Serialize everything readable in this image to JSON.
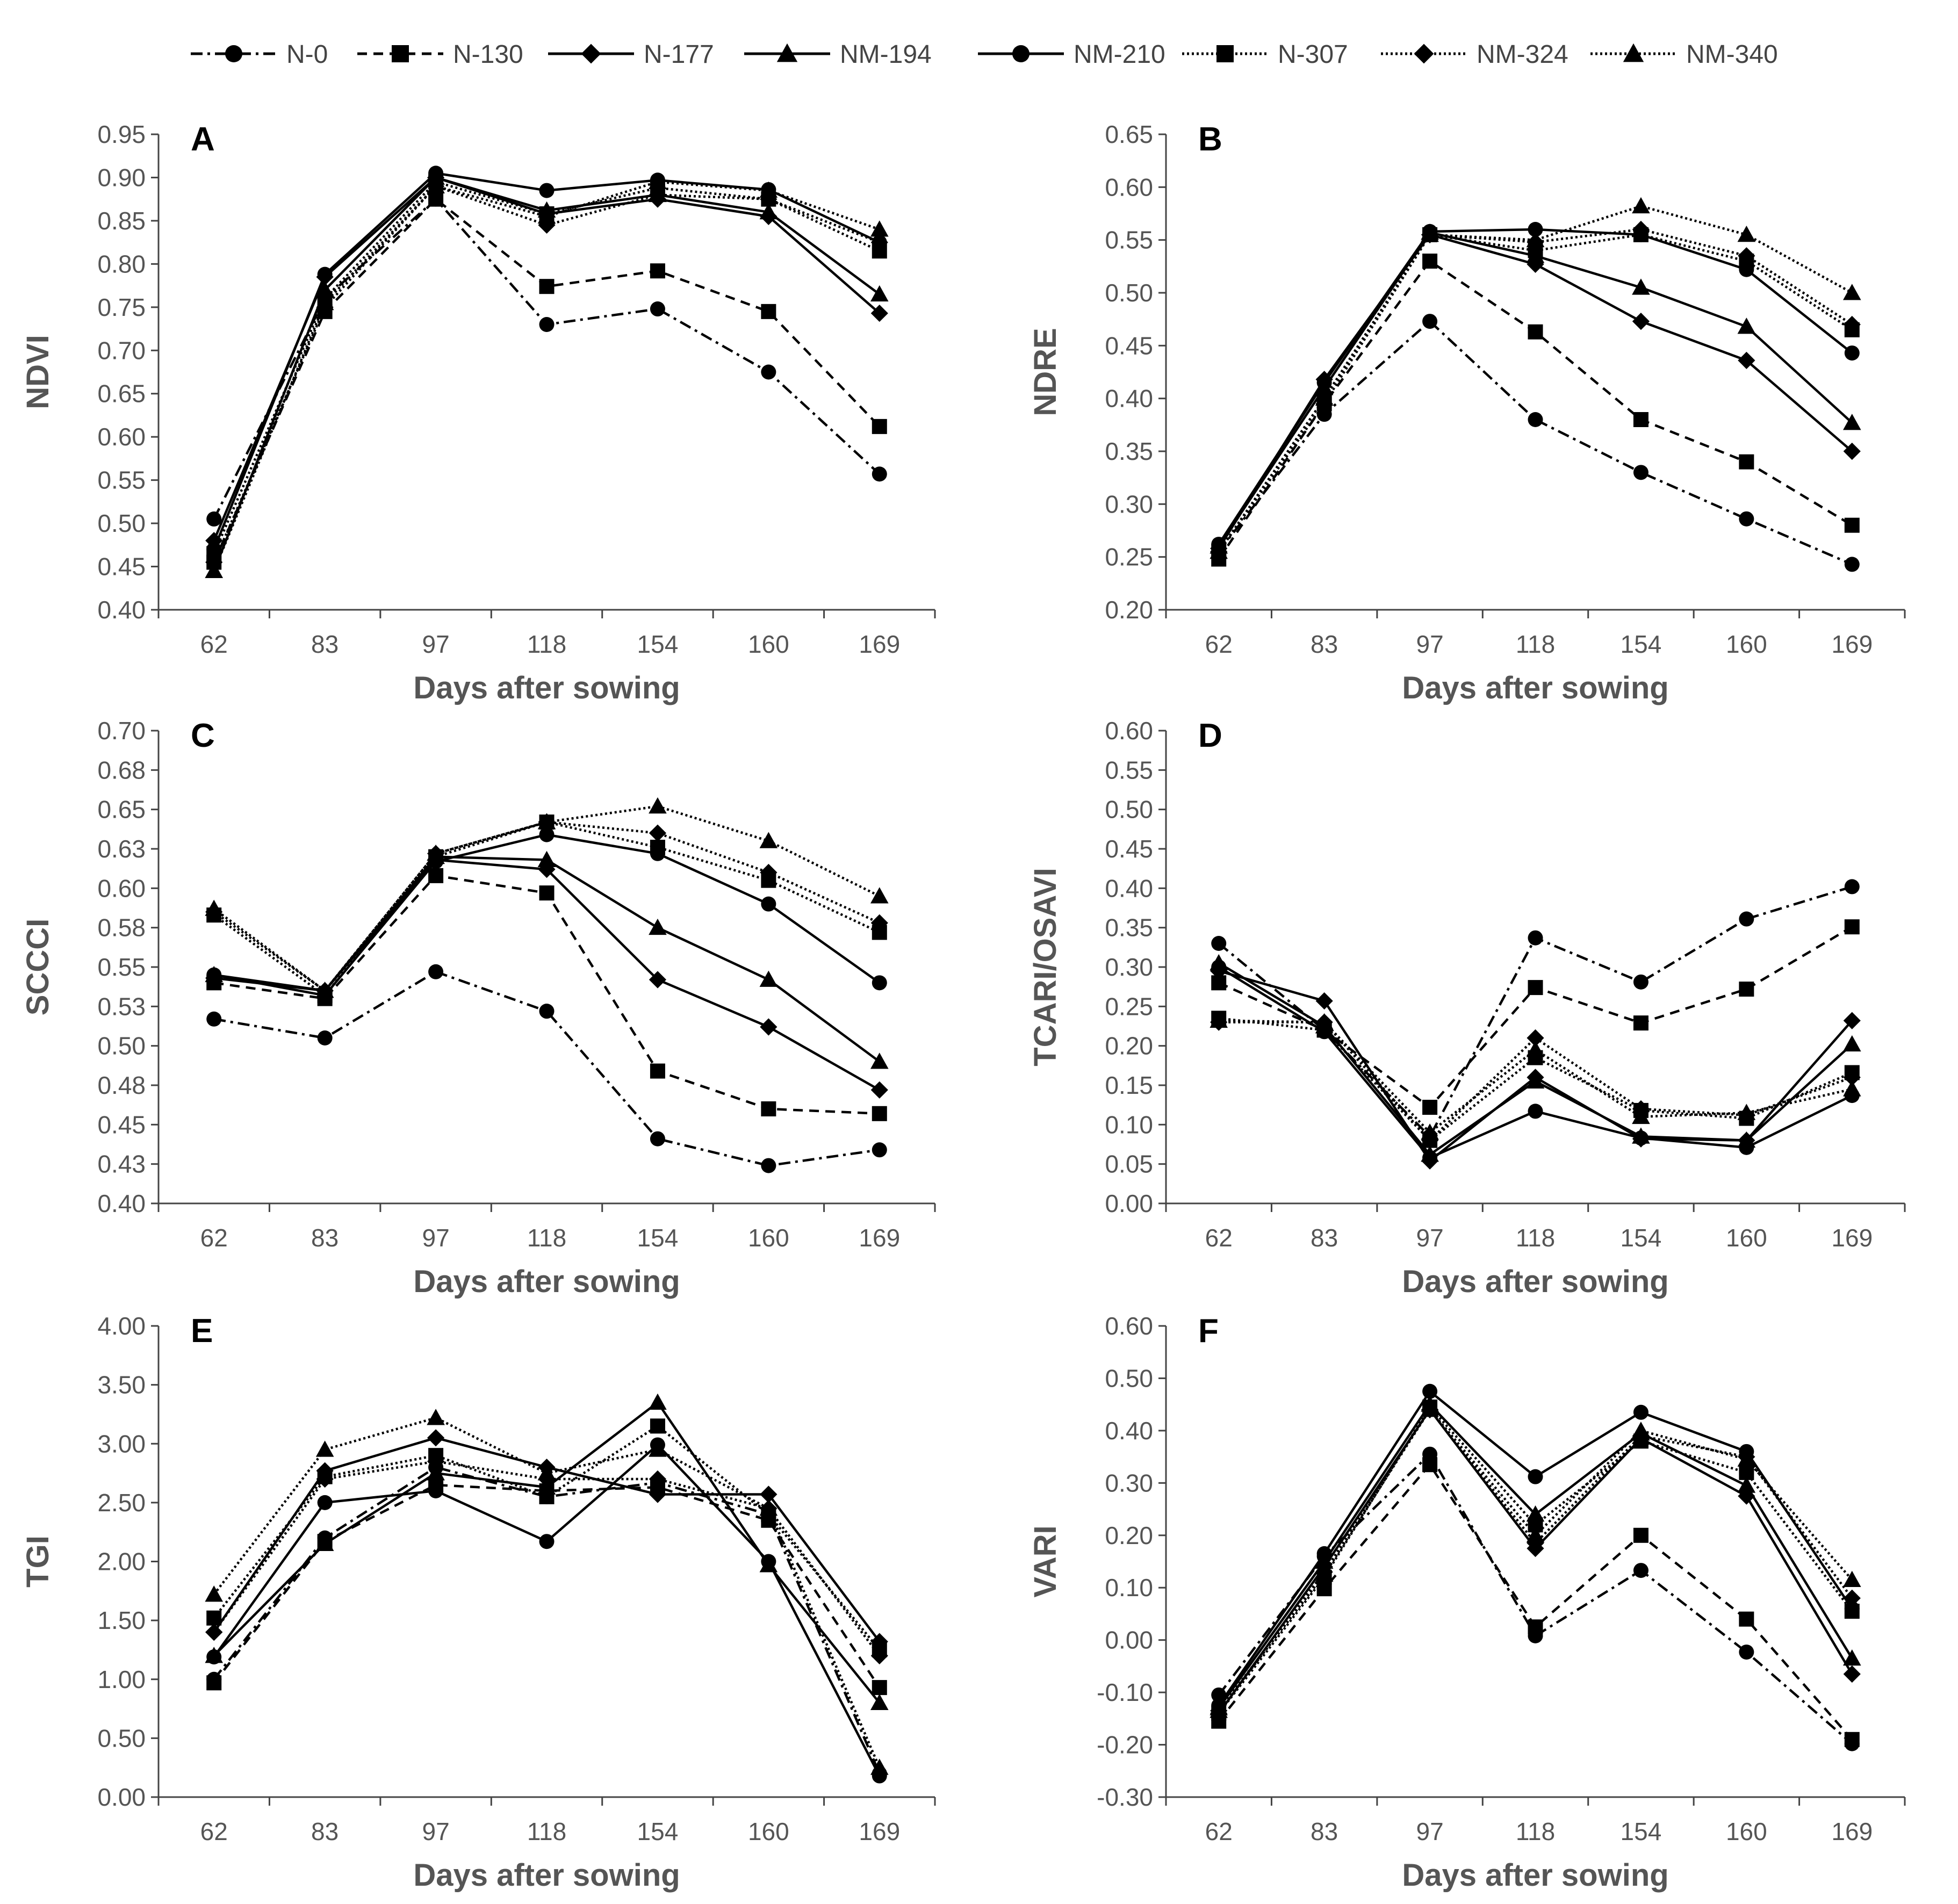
{
  "legend": {
    "position": "top",
    "entries": [
      {
        "name": "N-0",
        "dash": "dashdot",
        "marker": "circle"
      },
      {
        "name": "N-130",
        "dash": "dashed",
        "marker": "square"
      },
      {
        "name": "N-177",
        "dash": "solid",
        "marker": "diamond"
      },
      {
        "name": "NM-194",
        "dash": "solid",
        "marker": "triangle"
      },
      {
        "name": "NM-210",
        "dash": "solid",
        "marker": "circle"
      },
      {
        "name": "N-307",
        "dash": "dotted",
        "marker": "square"
      },
      {
        "name": "NM-324",
        "dash": "dotted",
        "marker": "diamond"
      },
      {
        "name": "NM-340",
        "dash": "dotted",
        "marker": "triangle"
      }
    ]
  },
  "chart_data": [
    {
      "panel": "A",
      "type": "line",
      "xlabel": "Days after sowing",
      "ylabel": "NDVI",
      "categories": [
        "62",
        "83",
        "97",
        "118",
        "154",
        "160",
        "169"
      ],
      "ylim": [
        0.4,
        0.95
      ],
      "ystep": 0.05,
      "decimals": 2,
      "yticks": [
        "0.40",
        "0.45",
        "0.50",
        "0.55",
        "0.60",
        "0.65",
        "0.70",
        "0.75",
        "0.80",
        "0.85",
        "0.90",
        "0.95"
      ],
      "series": [
        {
          "name": "N-0",
          "values": [
            0.505,
            0.76,
            0.875,
            0.73,
            0.748,
            0.675,
            0.557
          ]
        },
        {
          "name": "N-130",
          "values": [
            0.455,
            0.745,
            0.875,
            0.774,
            0.792,
            0.745,
            0.612
          ]
        },
        {
          "name": "N-177",
          "values": [
            0.48,
            0.785,
            0.9,
            0.858,
            0.875,
            0.855,
            0.743
          ]
        },
        {
          "name": "NM-194",
          "values": [
            0.445,
            0.77,
            0.9,
            0.862,
            0.88,
            0.86,
            0.765
          ]
        },
        {
          "name": "NM-210",
          "values": [
            0.47,
            0.788,
            0.905,
            0.885,
            0.897,
            0.886,
            0.825
          ]
        },
        {
          "name": "N-307",
          "values": [
            0.465,
            0.76,
            0.895,
            0.858,
            0.888,
            0.875,
            0.815
          ]
        },
        {
          "name": "NM-324",
          "values": [
            0.455,
            0.75,
            0.89,
            0.845,
            0.88,
            0.875,
            0.825
          ]
        },
        {
          "name": "NM-340",
          "values": [
            0.445,
            0.755,
            0.89,
            0.855,
            0.895,
            0.885,
            0.84
          ]
        }
      ]
    },
    {
      "panel": "B",
      "type": "line",
      "xlabel": "Days after sowing",
      "ylabel": "NDRE",
      "categories": [
        "62",
        "83",
        "97",
        "118",
        "154",
        "160",
        "169"
      ],
      "ylim": [
        0.2,
        0.65
      ],
      "ystep": 0.05,
      "decimals": 2,
      "yticks": [
        "0.20",
        "0.25",
        "0.30",
        "0.35",
        "0.40",
        "0.45",
        "0.50",
        "0.55",
        "0.60",
        "0.65"
      ],
      "series": [
        {
          "name": "N-0",
          "values": [
            0.255,
            0.385,
            0.473,
            0.38,
            0.33,
            0.286,
            0.243
          ]
        },
        {
          "name": "N-130",
          "values": [
            0.248,
            0.395,
            0.53,
            0.463,
            0.38,
            0.34,
            0.28
          ]
        },
        {
          "name": "N-177",
          "values": [
            0.258,
            0.418,
            0.555,
            0.527,
            0.473,
            0.436,
            0.35
          ]
        },
        {
          "name": "NM-194",
          "values": [
            0.26,
            0.41,
            0.557,
            0.535,
            0.505,
            0.468,
            0.377
          ]
        },
        {
          "name": "NM-210",
          "values": [
            0.262,
            0.415,
            0.558,
            0.56,
            0.555,
            0.522,
            0.443
          ]
        },
        {
          "name": "N-307",
          "values": [
            0.255,
            0.4,
            0.555,
            0.54,
            0.555,
            0.53,
            0.465
          ]
        },
        {
          "name": "NM-324",
          "values": [
            0.255,
            0.395,
            0.555,
            0.548,
            0.56,
            0.535,
            0.47
          ]
        },
        {
          "name": "NM-340",
          "values": [
            0.255,
            0.4,
            0.555,
            0.55,
            0.582,
            0.555,
            0.5
          ]
        }
      ]
    },
    {
      "panel": "C",
      "type": "line",
      "xlabel": "Days after sowing",
      "ylabel": "SCCCI",
      "categories": [
        "62",
        "83",
        "97",
        "118",
        "154",
        "160",
        "169"
      ],
      "ylim": [
        0.4,
        0.7
      ],
      "ystep": 0.025,
      "decimals": 2,
      "yticks": [
        "0.40",
        "0.43",
        "0.45",
        "0.48",
        "0.50",
        "0.53",
        "0.55",
        "0.58",
        "0.60",
        "0.63",
        "0.65",
        "0.68",
        "0.70"
      ],
      "series": [
        {
          "name": "N-0",
          "values": [
            0.517,
            0.505,
            0.547,
            0.522,
            0.441,
            0.424,
            0.434
          ]
        },
        {
          "name": "N-130",
          "values": [
            0.54,
            0.53,
            0.608,
            0.597,
            0.484,
            0.46,
            0.457
          ]
        },
        {
          "name": "N-177",
          "values": [
            0.543,
            0.535,
            0.618,
            0.612,
            0.542,
            0.512,
            0.472
          ]
        },
        {
          "name": "NM-194",
          "values": [
            0.545,
            0.535,
            0.62,
            0.618,
            0.575,
            0.542,
            0.49
          ]
        },
        {
          "name": "NM-210",
          "values": [
            0.545,
            0.532,
            0.617,
            0.634,
            0.622,
            0.59,
            0.54
          ]
        },
        {
          "name": "N-307",
          "values": [
            0.583,
            0.532,
            0.62,
            0.642,
            0.626,
            0.605,
            0.572
          ]
        },
        {
          "name": "NM-324",
          "values": [
            0.585,
            0.535,
            0.622,
            0.642,
            0.635,
            0.61,
            0.578
          ]
        },
        {
          "name": "NM-340",
          "values": [
            0.587,
            0.535,
            0.622,
            0.642,
            0.652,
            0.63,
            0.595
          ]
        }
      ]
    },
    {
      "panel": "D",
      "type": "line",
      "xlabel": "Days after sowing",
      "ylabel": "TCARI/OSAVI",
      "categories": [
        "62",
        "83",
        "97",
        "118",
        "154",
        "160",
        "169"
      ],
      "ylim": [
        0.0,
        0.6
      ],
      "ystep": 0.05,
      "decimals": 2,
      "yticks": [
        "0.00",
        "0.05",
        "0.10",
        "0.15",
        "0.20",
        "0.25",
        "0.30",
        "0.35",
        "0.40",
        "0.45",
        "0.50",
        "0.55",
        "0.60"
      ],
      "series": [
        {
          "name": "N-0",
          "values": [
            0.33,
            0.22,
            0.085,
            0.337,
            0.281,
            0.361,
            0.402
          ]
        },
        {
          "name": "N-130",
          "values": [
            0.28,
            0.22,
            0.122,
            0.274,
            0.229,
            0.272,
            0.351
          ]
        },
        {
          "name": "N-177",
          "values": [
            0.295,
            0.257,
            0.054,
            0.16,
            0.082,
            0.08,
            0.232
          ]
        },
        {
          "name": "NM-194",
          "values": [
            0.305,
            0.225,
            0.062,
            0.155,
            0.085,
            0.08,
            0.202
          ]
        },
        {
          "name": "NM-210",
          "values": [
            0.3,
            0.218,
            0.058,
            0.117,
            0.083,
            0.071,
            0.137
          ]
        },
        {
          "name": "N-307",
          "values": [
            0.235,
            0.22,
            0.08,
            0.185,
            0.118,
            0.108,
            0.166
          ]
        },
        {
          "name": "NM-324",
          "values": [
            0.23,
            0.23,
            0.08,
            0.21,
            0.12,
            0.112,
            0.16
          ]
        },
        {
          "name": "NM-340",
          "values": [
            0.232,
            0.23,
            0.09,
            0.195,
            0.11,
            0.115,
            0.145
          ]
        }
      ]
    },
    {
      "panel": "E",
      "type": "line",
      "xlabel": "Days after sowing",
      "ylabel": "TGI",
      "categories": [
        "62",
        "83",
        "97",
        "118",
        "154",
        "160",
        "169"
      ],
      "ylim": [
        0.0,
        4.0
      ],
      "ystep": 0.5,
      "decimals": 2,
      "yticks": [
        "0.00",
        "0.50",
        "1.00",
        "1.50",
        "2.00",
        "2.50",
        "3.00",
        "3.50",
        "4.00"
      ],
      "series": [
        {
          "name": "N-0",
          "values": [
            1.0,
            2.2,
            2.8,
            2.55,
            2.67,
            2.4,
            0.2
          ]
        },
        {
          "name": "N-130",
          "values": [
            0.97,
            2.17,
            2.65,
            2.6,
            2.63,
            2.35,
            0.93
          ]
        },
        {
          "name": "N-177",
          "values": [
            1.4,
            2.77,
            3.05,
            2.8,
            2.57,
            2.57,
            1.32
          ]
        },
        {
          "name": "NM-194",
          "values": [
            1.2,
            2.15,
            2.75,
            2.63,
            3.35,
            1.97,
            0.8
          ]
        },
        {
          "name": "NM-210",
          "values": [
            1.19,
            2.5,
            2.6,
            2.17,
            2.99,
            2.0,
            0.18
          ]
        },
        {
          "name": "N-307",
          "values": [
            1.52,
            2.72,
            2.9,
            2.55,
            3.15,
            2.4,
            1.25
          ]
        },
        {
          "name": "NM-324",
          "values": [
            1.4,
            2.7,
            2.85,
            2.7,
            2.7,
            2.45,
            1.2
          ]
        },
        {
          "name": "NM-340",
          "values": [
            1.72,
            2.95,
            3.22,
            2.75,
            2.95,
            2.45,
            0.25
          ]
        }
      ]
    },
    {
      "panel": "F",
      "type": "line",
      "xlabel": "Days after sowing",
      "ylabel": "VARI",
      "categories": [
        "62",
        "83",
        "97",
        "118",
        "154",
        "160",
        "169"
      ],
      "ylim": [
        -0.3,
        0.6
      ],
      "ystep": 0.1,
      "decimals": 2,
      "yticks": [
        "-0.30",
        "-0.20",
        "-0.10",
        "0.00",
        "0.10",
        "0.20",
        "0.30",
        "0.40",
        "0.50",
        "0.60"
      ],
      "series": [
        {
          "name": "N-0",
          "values": [
            -0.105,
            0.16,
            0.355,
            0.008,
            0.133,
            -0.023,
            -0.198
          ]
        },
        {
          "name": "N-130",
          "values": [
            -0.155,
            0.098,
            0.335,
            0.025,
            0.2,
            0.04,
            -0.19
          ]
        },
        {
          "name": "N-177",
          "values": [
            -0.14,
            0.14,
            0.44,
            0.175,
            0.385,
            0.275,
            -0.065
          ]
        },
        {
          "name": "NM-194",
          "values": [
            -0.13,
            0.15,
            0.45,
            0.24,
            0.395,
            0.295,
            -0.035
          ]
        },
        {
          "name": "NM-210",
          "values": [
            -0.125,
            0.165,
            0.475,
            0.312,
            0.435,
            0.36,
            0.06
          ]
        },
        {
          "name": "N-307",
          "values": [
            -0.14,
            0.12,
            0.445,
            0.22,
            0.38,
            0.32,
            0.055
          ]
        },
        {
          "name": "NM-324",
          "values": [
            -0.135,
            0.13,
            0.44,
            0.185,
            0.39,
            0.35,
            0.08
          ]
        },
        {
          "name": "NM-340",
          "values": [
            -0.135,
            0.125,
            0.44,
            0.2,
            0.4,
            0.345,
            0.115
          ]
        }
      ]
    }
  ]
}
